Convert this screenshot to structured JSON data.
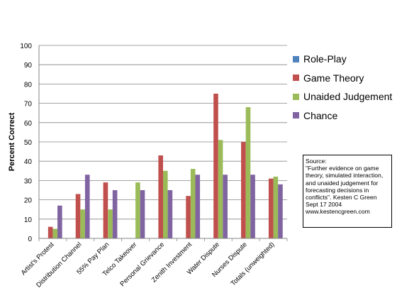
{
  "chart_data": {
    "type": "bar",
    "title": "",
    "xlabel": "",
    "ylabel": "Percent Correct",
    "ylim": [
      0,
      100
    ],
    "yticks": [
      0,
      10,
      20,
      30,
      40,
      50,
      60,
      70,
      80,
      90,
      100
    ],
    "grid": true,
    "legend_position": "right",
    "categories": [
      "Artist's Protest",
      "Distribution Channel",
      "55% Pay Plan",
      "Telco Takeover",
      "Personal Grievance",
      "Zenith Investment",
      "Water Dispute",
      "Nurses Dispute",
      "Totals (unweighted)"
    ],
    "series": [
      {
        "name": "Role-Play",
        "color": "#4f81bd",
        "values": [
          null,
          null,
          null,
          null,
          null,
          null,
          null,
          null,
          null
        ]
      },
      {
        "name": "Game Theory",
        "color": "#c0504d",
        "values": [
          6,
          23,
          29,
          null,
          43,
          22,
          75,
          50,
          31
        ]
      },
      {
        "name": "Unaided Judgement",
        "color": "#9bbb59",
        "values": [
          5,
          15,
          15,
          29,
          35,
          36,
          51,
          68,
          32
        ]
      },
      {
        "name": "Chance",
        "color": "#8064a2",
        "values": [
          17,
          33,
          25,
          25,
          25,
          33,
          33,
          33,
          28
        ]
      }
    ],
    "annotation": "Source:\n\"Further evidence on game theory, simulated interaction, and unaided judgement for forecasting decisions in conflicts\". Kesten C Green Sept 17 2004\nwww.kestencgreen.com"
  }
}
